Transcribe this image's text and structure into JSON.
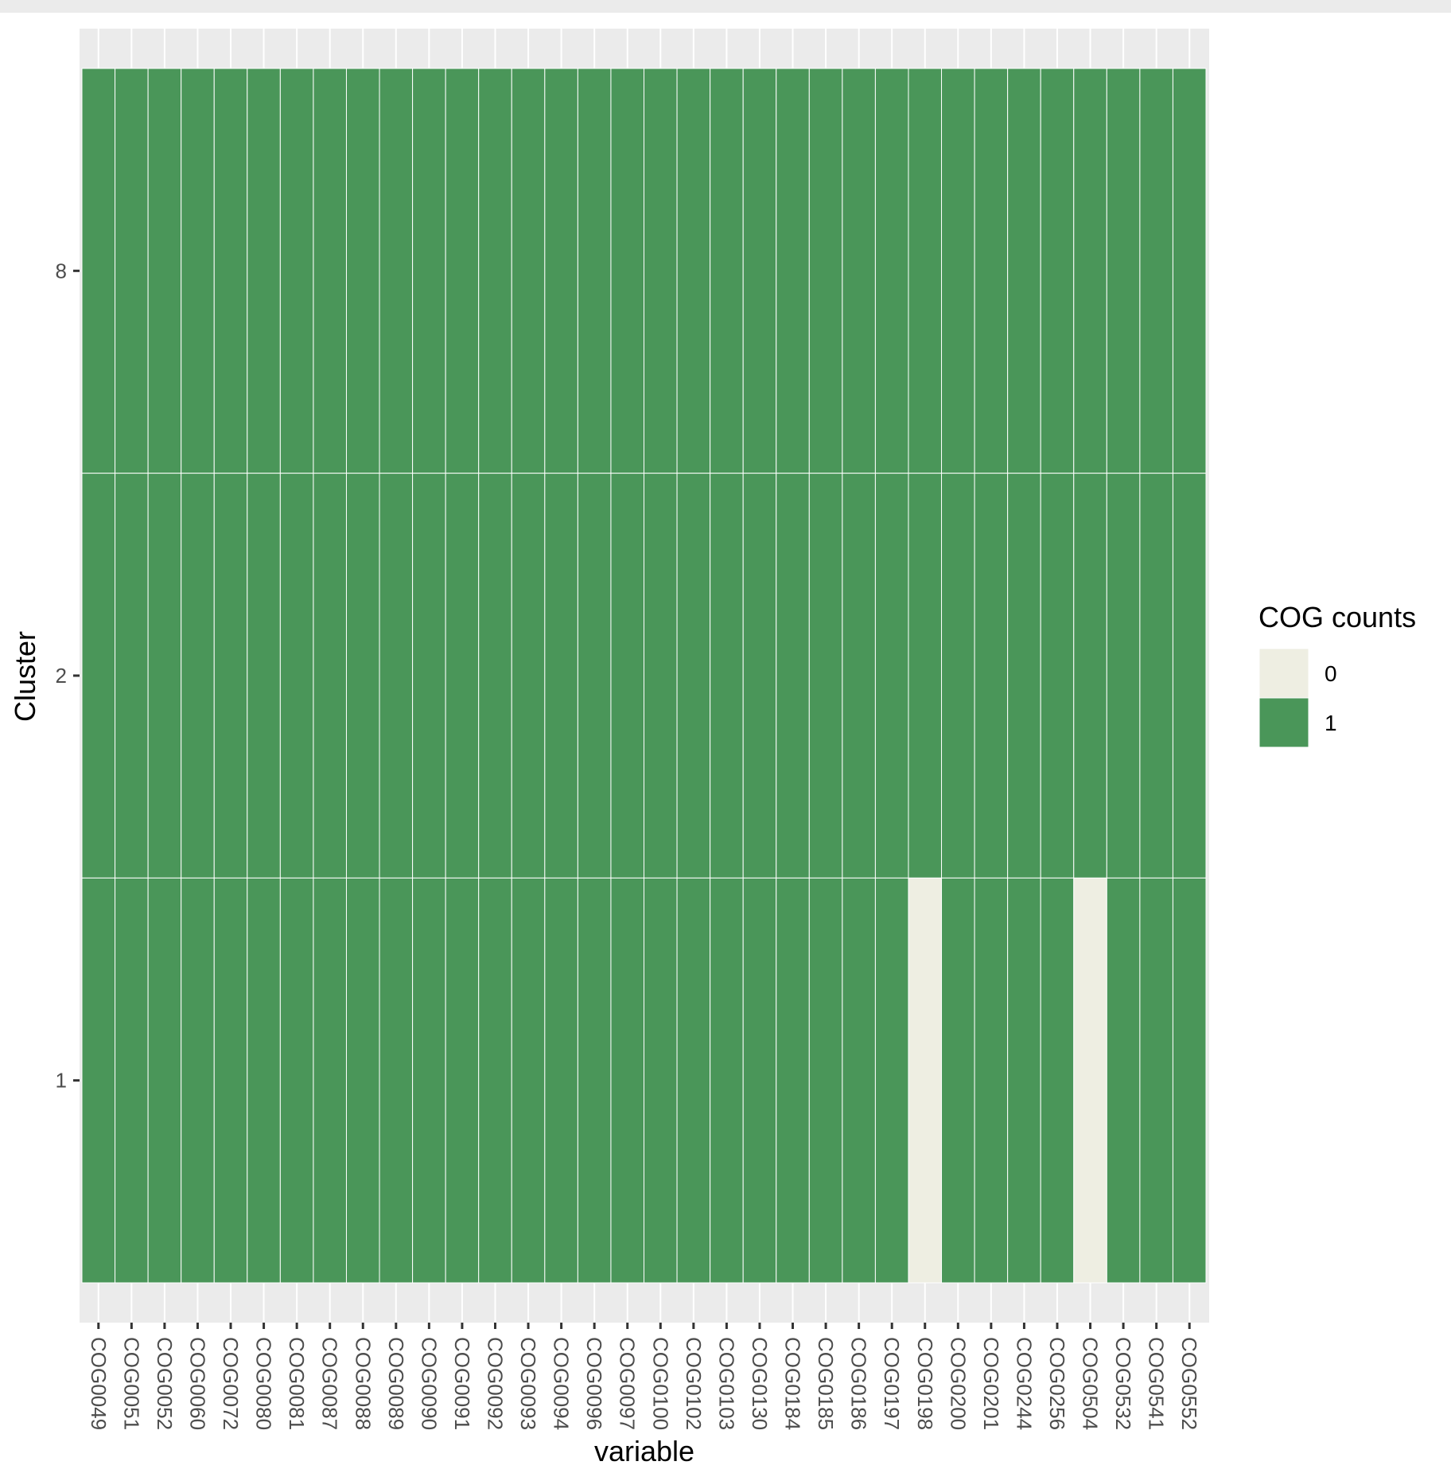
{
  "chart_data": {
    "type": "heatmap",
    "title": "",
    "xlabel": "variable",
    "ylabel": "Cluster",
    "x_categories": [
      "COG0049",
      "COG0051",
      "COG0052",
      "COG0060",
      "COG0072",
      "COG0080",
      "COG0081",
      "COG0087",
      "COG0088",
      "COG0089",
      "COG0090",
      "COG0091",
      "COG0092",
      "COG0093",
      "COG0094",
      "COG0096",
      "COG0097",
      "COG0100",
      "COG0102",
      "COG0103",
      "COG0130",
      "COG0184",
      "COG0185",
      "COG0186",
      "COG0197",
      "COG0198",
      "COG0200",
      "COG0201",
      "COG0244",
      "COG0256",
      "COG0504",
      "COG0532",
      "COG0541",
      "COG0552"
    ],
    "y_categories": [
      "8",
      "",
      "2",
      "",
      "1"
    ],
    "rows": [
      {
        "cluster": "8",
        "values": [
          1,
          1,
          1,
          1,
          1,
          1,
          1,
          1,
          1,
          1,
          1,
          1,
          1,
          1,
          1,
          1,
          1,
          1,
          1,
          1,
          1,
          1,
          1,
          1,
          1,
          1,
          1,
          1,
          1,
          1,
          1,
          1,
          1,
          1
        ]
      },
      {
        "cluster": "2",
        "values": [
          1,
          1,
          1,
          1,
          1,
          1,
          1,
          1,
          1,
          1,
          1,
          1,
          1,
          1,
          1,
          1,
          1,
          1,
          1,
          1,
          1,
          1,
          1,
          1,
          1,
          1,
          1,
          1,
          1,
          1,
          1,
          1,
          1,
          1
        ]
      },
      {
        "cluster": "1",
        "values": [
          1,
          1,
          1,
          1,
          1,
          1,
          1,
          1,
          1,
          1,
          1,
          1,
          1,
          1,
          1,
          1,
          1,
          1,
          1,
          1,
          1,
          1,
          1,
          1,
          1,
          0,
          1,
          1,
          1,
          1,
          0,
          1,
          1,
          1
        ]
      }
    ],
    "y_tick_labels": [
      "8",
      "2",
      "1"
    ],
    "legend": {
      "title": "COG counts",
      "position": "right",
      "entries": [
        {
          "label": "0",
          "color": "#eeeee2"
        },
        {
          "label": "1",
          "color": "#4a9659"
        }
      ]
    },
    "colors": {
      "panel_background": "#ebebeb",
      "grid": "#ffffff",
      "tile_border": "#ffffff"
    }
  }
}
